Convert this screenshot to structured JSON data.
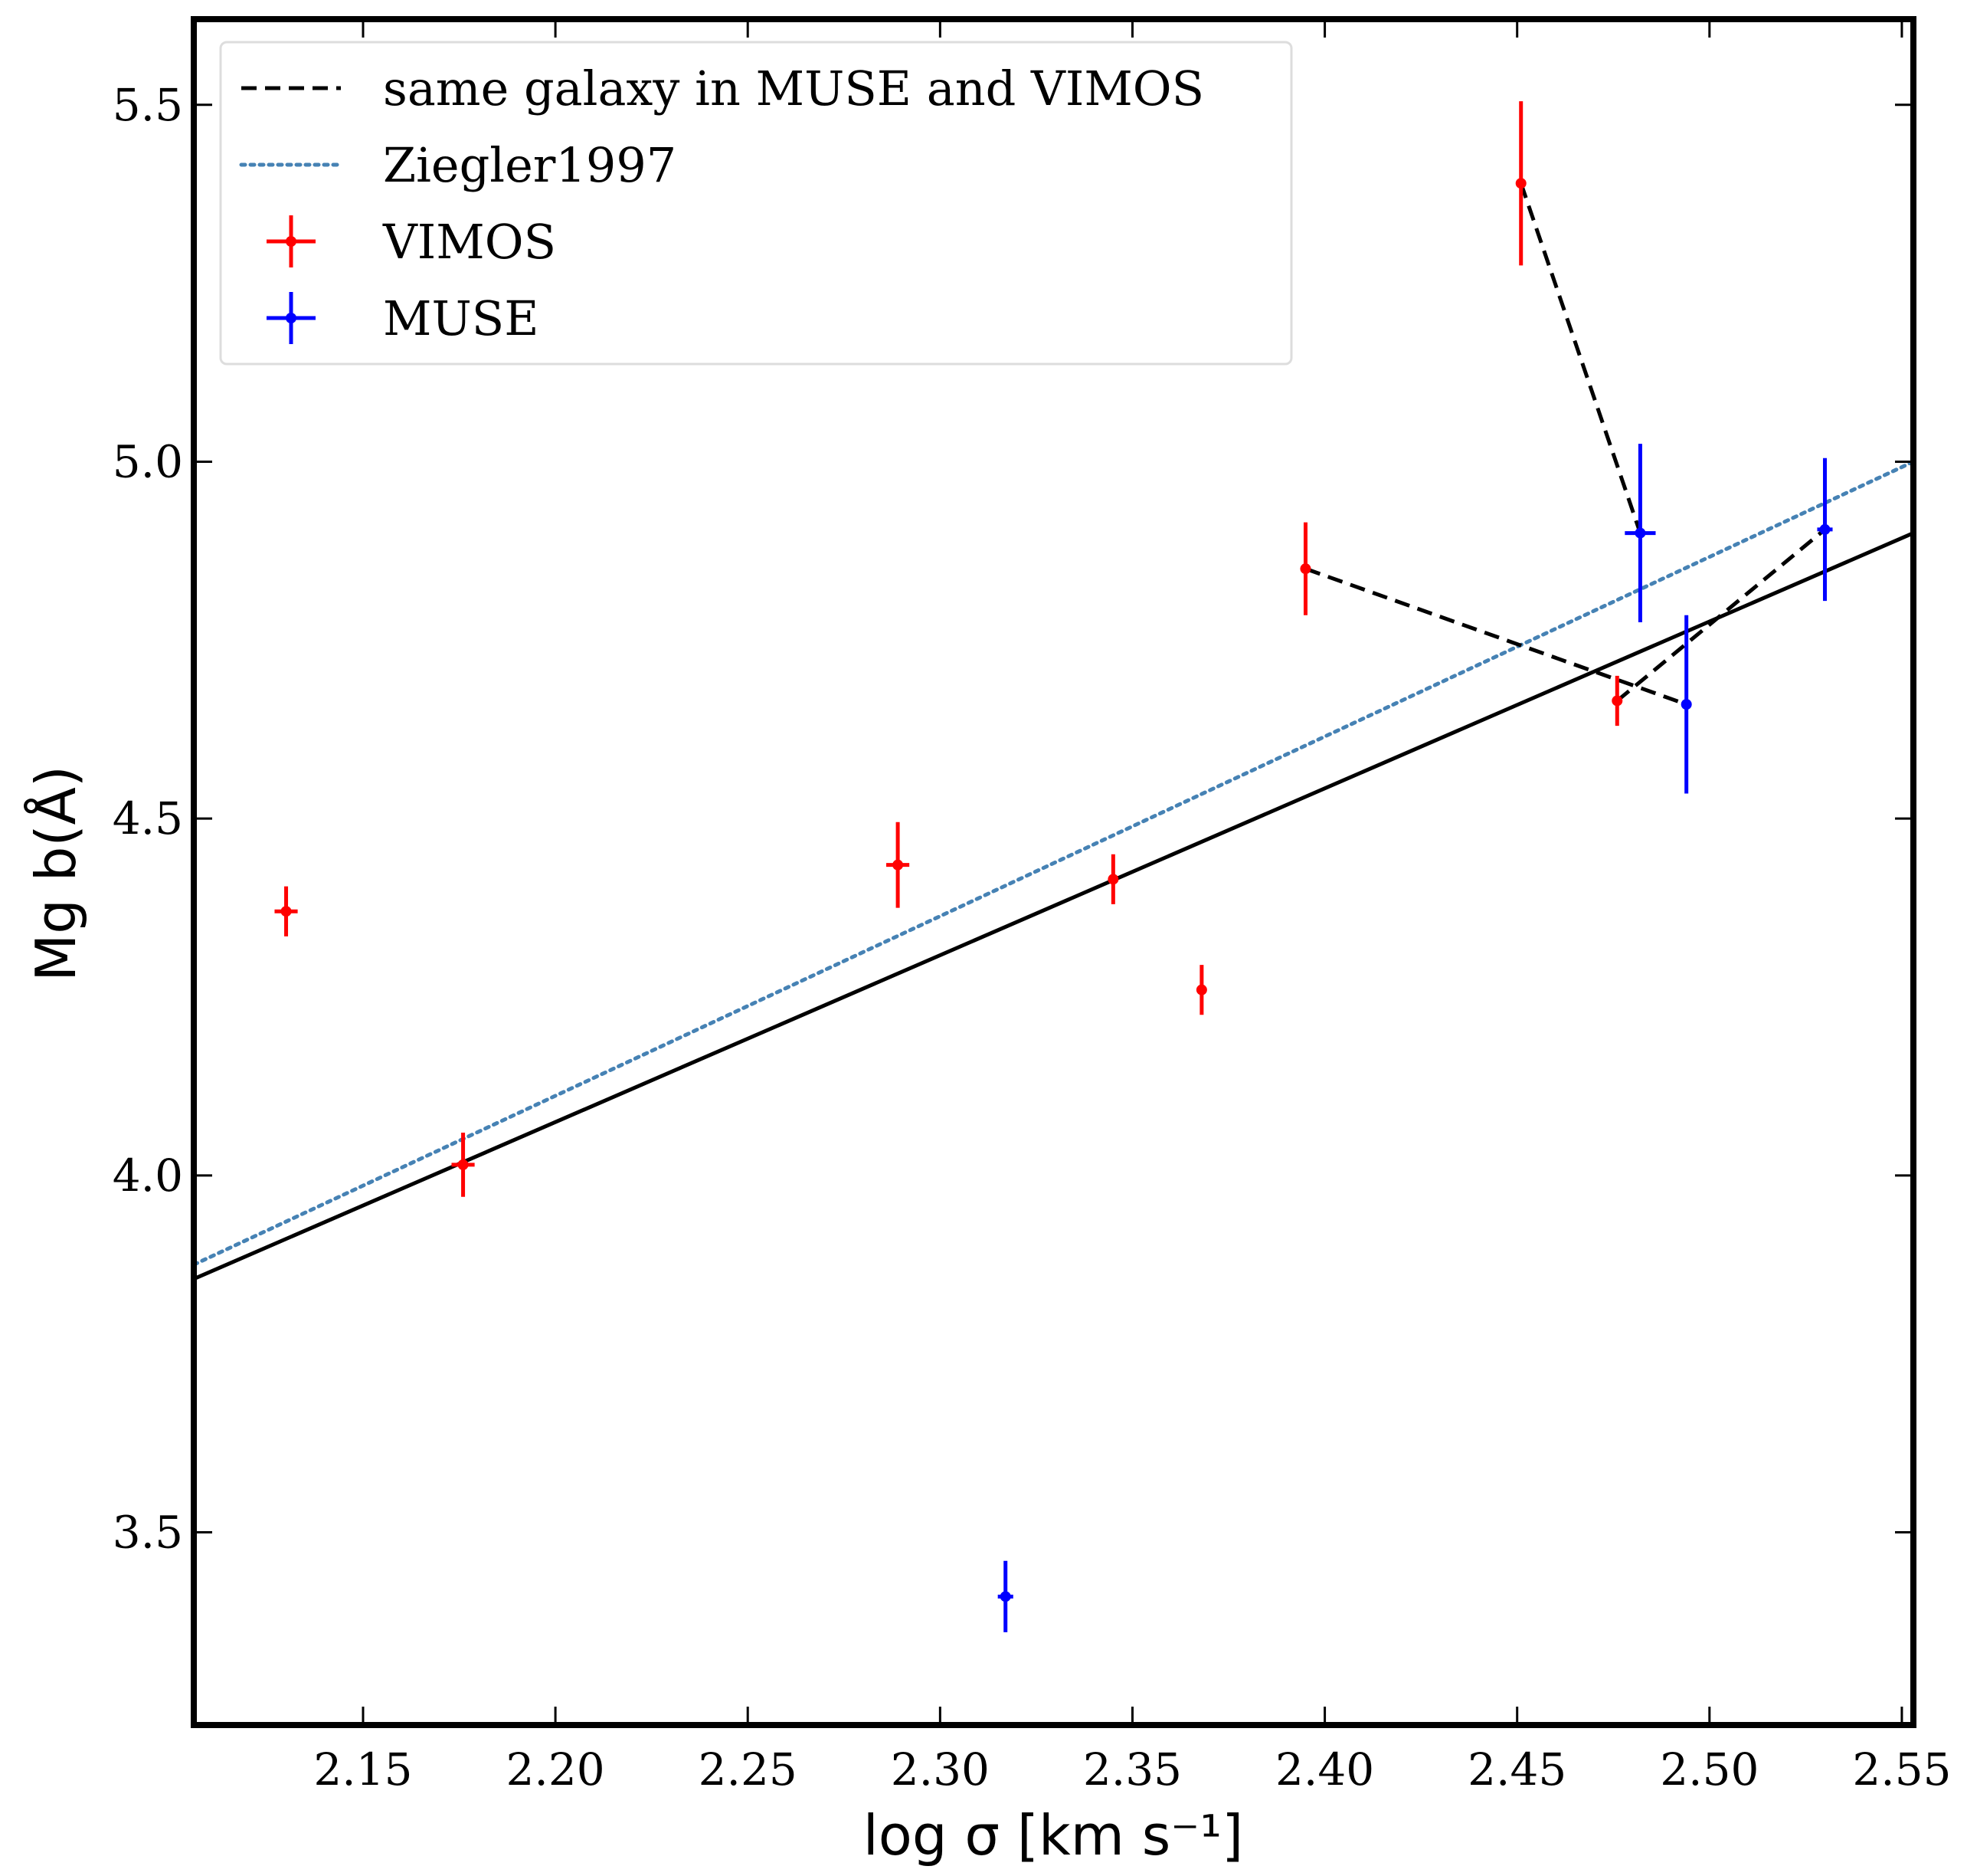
{
  "chart_data": {
    "type": "scatter",
    "title": "",
    "xlabel": "log σ [km s⁻¹]",
    "ylabel": "Mg b(Å)",
    "xlim": [
      2.106,
      2.553
    ],
    "ylim": [
      3.23,
      5.62
    ],
    "xticks": [
      2.15,
      2.2,
      2.25,
      2.3,
      2.35,
      2.4,
      2.45,
      2.5,
      2.55
    ],
    "xtick_labels": [
      "2.15",
      "2.20",
      "2.25",
      "2.30",
      "2.35",
      "2.40",
      "2.45",
      "2.50",
      "2.55"
    ],
    "yticks": [
      3.5,
      4.0,
      4.5,
      5.0,
      5.5
    ],
    "ytick_labels": [
      "3.5",
      "4.0",
      "4.5",
      "5.0",
      "5.5"
    ],
    "grid": false,
    "legend_position": "top-left",
    "series": [
      {
        "name": "VIMOS",
        "kind": "errorbar",
        "color": "#ff0000",
        "points": [
          {
            "x": 2.13,
            "y": 4.37,
            "yerr": 0.035,
            "xerr": 0.003
          },
          {
            "x": 2.176,
            "y": 4.015,
            "yerr": 0.045,
            "xerr": 0.003
          },
          {
            "x": 2.289,
            "y": 4.435,
            "yerr": 0.06,
            "xerr": 0.003
          },
          {
            "x": 2.345,
            "y": 4.415,
            "yerr": 0.035,
            "xerr": 0.001
          },
          {
            "x": 2.368,
            "y": 4.26,
            "yerr": 0.035,
            "xerr": 0.001
          },
          {
            "x": 2.395,
            "y": 4.85,
            "yerr": 0.065,
            "xerr": 0.0
          },
          {
            "x": 2.451,
            "y": 5.39,
            "yerr": 0.115,
            "xerr": 0.0
          },
          {
            "x": 2.476,
            "y": 4.665,
            "yerr": 0.035,
            "xerr": 0.0
          }
        ]
      },
      {
        "name": "MUSE",
        "kind": "errorbar",
        "color": "#0000ff",
        "points": [
          {
            "x": 2.317,
            "y": 3.41,
            "yerr": 0.05,
            "xerr": 0.002
          },
          {
            "x": 2.482,
            "y": 4.9,
            "yerr": 0.125,
            "xerr": 0.004
          },
          {
            "x": 2.494,
            "y": 4.66,
            "yerr": 0.125,
            "xerr": 0.0
          },
          {
            "x": 2.53,
            "y": 4.905,
            "yerr": 0.1,
            "xerr": 0.002
          }
        ]
      },
      {
        "name": "same galaxy in MUSE and VIMOS",
        "kind": "dashed-pairs",
        "color": "#000000",
        "segments": [
          [
            [
              2.451,
              5.39
            ],
            [
              2.482,
              4.9
            ]
          ],
          [
            [
              2.395,
              4.85
            ],
            [
              2.494,
              4.66
            ]
          ],
          [
            [
              2.476,
              4.665
            ],
            [
              2.53,
              4.905
            ]
          ]
        ]
      },
      {
        "name": "Ziegler1997",
        "kind": "dotted-line",
        "color": "#4682b4",
        "points": [
          [
            2.106,
            3.875
          ],
          [
            2.553,
            5.0
          ]
        ]
      },
      {
        "name": "",
        "kind": "solid-line",
        "color": "#000000",
        "points": [
          [
            2.106,
            3.855
          ],
          [
            2.553,
            4.9
          ]
        ]
      }
    ]
  }
}
